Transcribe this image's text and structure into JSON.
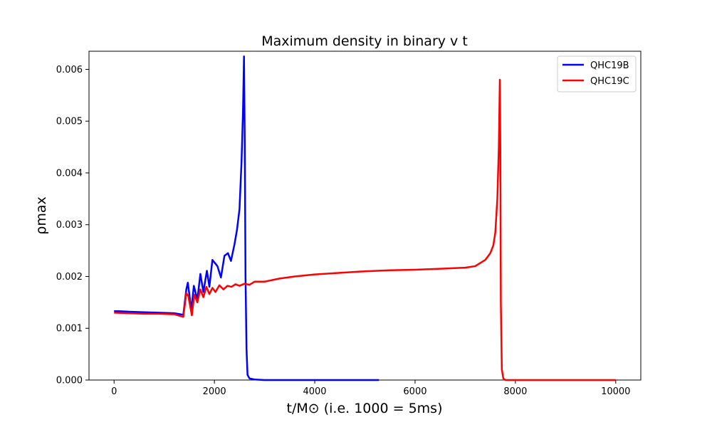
{
  "chart_data": {
    "type": "line",
    "title": "Maximum density in binary v t",
    "xlabel": "t/M⊙ (i.e. 1000 = 5ms)",
    "ylabel": "ρmax",
    "xlim": [
      -500,
      10500
    ],
    "ylim": [
      0,
      0.00635
    ],
    "xticks": [
      0,
      2000,
      4000,
      6000,
      8000,
      10000
    ],
    "yticks": [
      0.0,
      0.001,
      0.002,
      0.003,
      0.004,
      0.005,
      0.006
    ],
    "xtick_labels": [
      "0",
      "2000",
      "4000",
      "6000",
      "8000",
      "10000"
    ],
    "ytick_labels": [
      "0.000",
      "0.001",
      "0.002",
      "0.003",
      "0.004",
      "0.005",
      "0.006"
    ],
    "grid": false,
    "legend_position": "top-right",
    "series": [
      {
        "name": "QHC19B",
        "color": "#0000ff",
        "x": [
          0,
          100,
          300,
          600,
          900,
          1200,
          1380,
          1440,
          1470,
          1540,
          1590,
          1660,
          1720,
          1780,
          1850,
          1900,
          1960,
          2060,
          2130,
          2200,
          2270,
          2330,
          2400,
          2450,
          2500,
          2540,
          2570,
          2590,
          2605,
          2620,
          2640,
          2660,
          2700,
          2800,
          3000,
          4000,
          5000,
          5280
        ],
        "y": [
          0.00133,
          0.00133,
          0.00132,
          0.00131,
          0.0013,
          0.00129,
          0.00126,
          0.00175,
          0.00188,
          0.00135,
          0.00182,
          0.00155,
          0.00205,
          0.0017,
          0.00211,
          0.0018,
          0.00232,
          0.0022,
          0.00198,
          0.0024,
          0.00245,
          0.0023,
          0.00262,
          0.0029,
          0.0033,
          0.0042,
          0.0052,
          0.00625,
          0.0046,
          0.002,
          0.0006,
          0.0001,
          3e-05,
          1e-05,
          0.0,
          0.0,
          0.0,
          0.0
        ]
      },
      {
        "name": "QHC19C",
        "color": "#ff0000",
        "x": [
          0,
          300,
          600,
          900,
          1200,
          1380,
          1440,
          1480,
          1550,
          1600,
          1660,
          1720,
          1780,
          1840,
          1900,
          1960,
          2020,
          2100,
          2180,
          2260,
          2340,
          2420,
          2500,
          2600,
          2700,
          2800,
          3000,
          3300,
          3600,
          4000,
          4500,
          5000,
          5500,
          6000,
          6500,
          7000,
          7200,
          7400,
          7500,
          7560,
          7600,
          7640,
          7670,
          7690,
          7700,
          7710,
          7730,
          7760,
          7800,
          8000,
          9000,
          10000
        ],
        "y": [
          0.0013,
          0.00129,
          0.00128,
          0.00128,
          0.00127,
          0.00122,
          0.00168,
          0.00162,
          0.00125,
          0.00165,
          0.0015,
          0.00175,
          0.0016,
          0.0018,
          0.00166,
          0.00178,
          0.0017,
          0.00183,
          0.00175,
          0.00182,
          0.0018,
          0.00185,
          0.00182,
          0.00186,
          0.00184,
          0.0019,
          0.0019,
          0.00196,
          0.002,
          0.00204,
          0.00207,
          0.0021,
          0.00212,
          0.00213,
          0.00215,
          0.00217,
          0.0022,
          0.00232,
          0.00245,
          0.0026,
          0.00285,
          0.0035,
          0.0045,
          0.0058,
          0.0045,
          0.0015,
          0.0002,
          3e-05,
          0.0,
          0.0,
          0.0,
          0.0
        ]
      }
    ]
  }
}
